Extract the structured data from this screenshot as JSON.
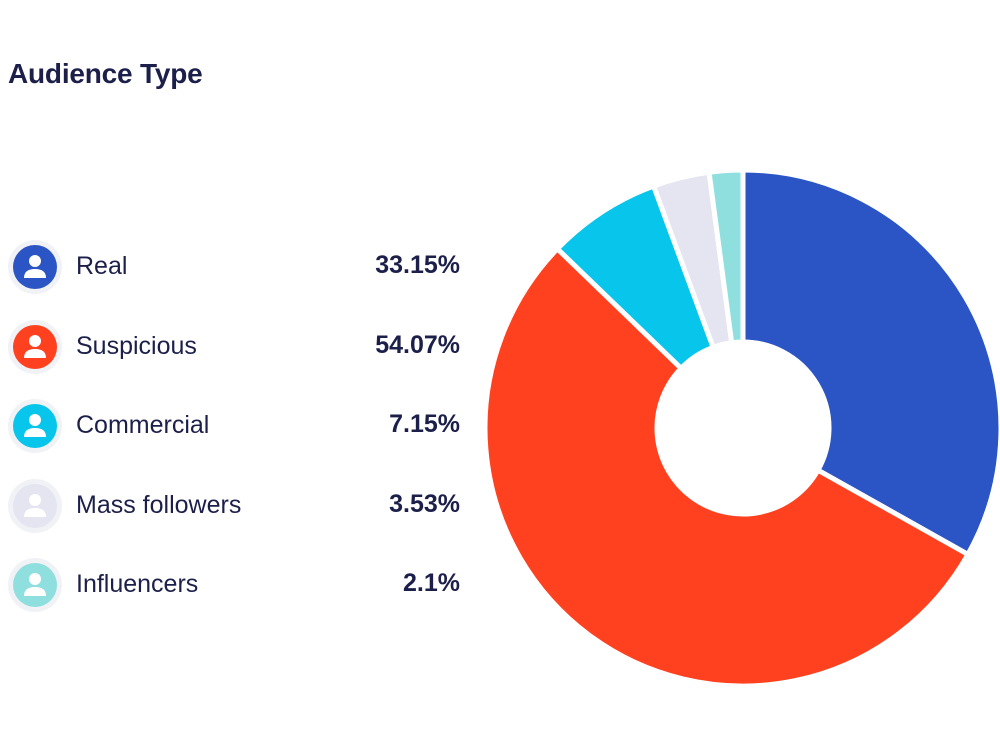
{
  "chart_data": {
    "type": "pie",
    "donut": true,
    "title": "Audience Type",
    "legend_position": "left",
    "categories": [
      "Real",
      "Suspicious",
      "Commercial",
      "Mass followers",
      "Influencers"
    ],
    "values": [
      33.15,
      54.07,
      7.15,
      3.53,
      2.1
    ],
    "value_labels": [
      "33.15%",
      "54.07%",
      "7.15%",
      "3.53%",
      "2.1%"
    ],
    "colors": [
      "#2b55c4",
      "#ff4120",
      "#08c5ec",
      "#e4e5f1",
      "#8fdfdf"
    ]
  }
}
